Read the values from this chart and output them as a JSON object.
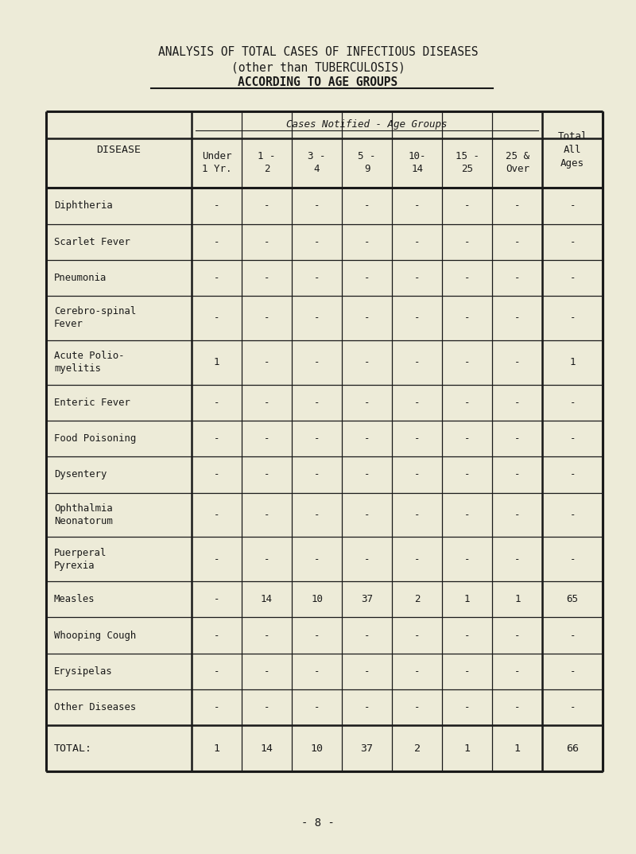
{
  "title_line1": "ANALYSIS OF TOTAL CASES OF INFECTIOUS DISEASES",
  "title_line2": "(other than TUBERCULOSIS)",
  "title_line3": "ACCORDING TO AGE GROUPS",
  "page_number": "- 8 -",
  "bg_color": "#edebd8",
  "col_header_span": "Cases Notified - Age Groups",
  "age_col_headers": [
    "Under\n1 Yr.",
    "1 -\n2",
    "3 -\n4",
    "5 -\n9",
    "10-\n14",
    "15 -\n25",
    "25 &\nOver"
  ],
  "total_col_header": "Total\nAll\nAges",
  "disease_col_header": "DISEASE",
  "diseases": [
    "Diphtheria",
    "Scarlet Fever",
    "Pneumonia",
    "Cerebro-spinal\nFever",
    "Acute Polio-\nmyelitis",
    "Enteric Fever",
    "Food Poisoning",
    "Dysentery",
    "Ophthalmia\nNeonatorum",
    "Puerperal\nPyrexia",
    "Measles",
    "Whooping Cough",
    "Erysipelas",
    "Other Diseases"
  ],
  "data": [
    [
      "-",
      "-",
      "-",
      "-",
      "-",
      "-",
      "-",
      "-"
    ],
    [
      "-",
      "-",
      "-",
      "-",
      "-",
      "-",
      "-",
      "-"
    ],
    [
      "-",
      "-",
      "-",
      "-",
      "-",
      "-",
      "-",
      "-"
    ],
    [
      "-",
      "-",
      "-",
      "-",
      "-",
      "-",
      "-",
      "-"
    ],
    [
      "1",
      "-",
      "-",
      "-",
      "-",
      "-",
      "-",
      "1"
    ],
    [
      "-",
      "-",
      "-",
      "-",
      "-",
      "-",
      "-",
      "-"
    ],
    [
      "-",
      "-",
      "-",
      "-",
      "-",
      "-",
      "-",
      "-"
    ],
    [
      "-",
      "-",
      "-",
      "-",
      "-",
      "-",
      "-",
      "-"
    ],
    [
      "-",
      "-",
      "-",
      "-",
      "-",
      "-",
      "-",
      "-"
    ],
    [
      "-",
      "-",
      "-",
      "-",
      "-",
      "-",
      "-",
      "-"
    ],
    [
      "-",
      "14",
      "10",
      "37",
      "2",
      "1",
      "1",
      "65"
    ],
    [
      "-",
      "-",
      "-",
      "-",
      "-",
      "-",
      "-",
      "-"
    ],
    [
      "-",
      "-",
      "-",
      "-",
      "-",
      "-",
      "-",
      "-"
    ],
    [
      "-",
      "-",
      "-",
      "-",
      "-",
      "-",
      "-",
      "-"
    ]
  ],
  "total_row_label": "TOTAL:",
  "total_row": [
    "1",
    "14",
    "10",
    "37",
    "2",
    "1",
    "1",
    "66"
  ],
  "text_color": "#1a1a1a",
  "line_color": "#1a1a1a",
  "font_family": "DejaVu Sans",
  "title_fontsize": 10.5,
  "header_fontsize": 9.0,
  "cell_fontsize": 9.0,
  "disease_fontsize": 8.8
}
